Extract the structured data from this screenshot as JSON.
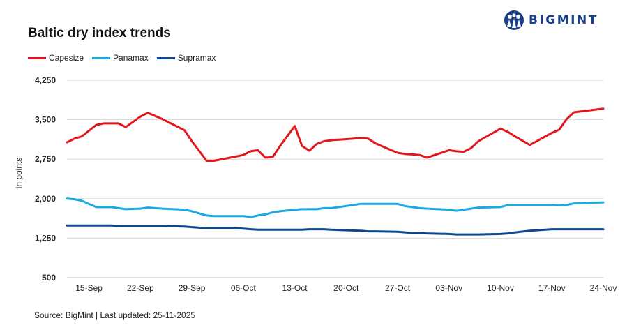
{
  "logo": {
    "text": "BIGMINT",
    "icon": "bigmint-logo-icon",
    "color": "#1b3f8b"
  },
  "source": "Source: BigMint | Last updated: 25-11-2025",
  "chart_data": {
    "type": "line",
    "title": "Baltic dry index trends",
    "ylabel": "in points",
    "xlabel": "",
    "ylim": [
      500,
      4250
    ],
    "yticks": [
      500,
      1250,
      2000,
      2750,
      3500,
      4250
    ],
    "ytick_labels": [
      "500",
      "1,250",
      "2,000",
      "2,750",
      "3,500",
      "4,250"
    ],
    "x_start": "2025-09-12",
    "x_end": "2025-11-24",
    "xtick_labels": [
      "15-Sep",
      "22-Sep",
      "29-Sep",
      "06-Oct",
      "13-Oct",
      "20-Oct",
      "27-Oct",
      "03-Nov",
      "10-Nov",
      "17-Nov",
      "24-Nov"
    ],
    "xtick_dates": [
      "2025-09-15",
      "2025-09-22",
      "2025-09-29",
      "2025-10-06",
      "2025-10-13",
      "2025-10-20",
      "2025-10-27",
      "2025-11-03",
      "2025-11-10",
      "2025-11-17",
      "2025-11-24"
    ],
    "grid": "horizontal",
    "legend_position": "top-left",
    "x": [
      "2025-09-12",
      "2025-09-13",
      "2025-09-14",
      "2025-09-16",
      "2025-09-17",
      "2025-09-18",
      "2025-09-19",
      "2025-09-20",
      "2025-09-22",
      "2025-09-23",
      "2025-09-25",
      "2025-09-28",
      "2025-09-29",
      "2025-10-01",
      "2025-10-02",
      "2025-10-05",
      "2025-10-06",
      "2025-10-07",
      "2025-10-08",
      "2025-10-09",
      "2025-10-10",
      "2025-10-11",
      "2025-10-13",
      "2025-10-14",
      "2025-10-15",
      "2025-10-16",
      "2025-10-17",
      "2025-10-18",
      "2025-10-22",
      "2025-10-23",
      "2025-10-24",
      "2025-10-27",
      "2025-10-28",
      "2025-10-29",
      "2025-10-30",
      "2025-10-31",
      "2025-11-03",
      "2025-11-04",
      "2025-11-05",
      "2025-11-06",
      "2025-11-07",
      "2025-11-10",
      "2025-11-11",
      "2025-11-12",
      "2025-11-14",
      "2025-11-17",
      "2025-11-18",
      "2025-11-19",
      "2025-11-20",
      "2025-11-24"
    ],
    "series": [
      {
        "name": "Capesize",
        "color": "#e2171c",
        "values": [
          3070,
          3140,
          3180,
          3400,
          3430,
          3430,
          3430,
          3360,
          3560,
          3630,
          3510,
          3300,
          3090,
          2720,
          2720,
          2800,
          2830,
          2900,
          2920,
          2780,
          2790,
          3000,
          3380,
          3000,
          2910,
          3040,
          3090,
          3110,
          3150,
          3140,
          3050,
          2870,
          2850,
          2840,
          2830,
          2780,
          2920,
          2900,
          2890,
          2960,
          3090,
          3330,
          3270,
          3180,
          3020,
          3250,
          3310,
          3510,
          3640,
          3710
        ]
      },
      {
        "name": "Panamax",
        "color": "#1ba9e1",
        "values": [
          2000,
          1990,
          1960,
          1840,
          1840,
          1840,
          1820,
          1800,
          1810,
          1830,
          1810,
          1790,
          1760,
          1680,
          1670,
          1670,
          1670,
          1650,
          1680,
          1700,
          1740,
          1760,
          1790,
          1800,
          1800,
          1800,
          1820,
          1820,
          1900,
          1900,
          1900,
          1900,
          1860,
          1840,
          1820,
          1810,
          1790,
          1770,
          1790,
          1810,
          1830,
          1840,
          1880,
          1880,
          1880,
          1880,
          1870,
          1880,
          1910,
          1930
        ]
      },
      {
        "name": "Supramax",
        "color": "#0b4a8f",
        "values": [
          1490,
          1490,
          1490,
          1490,
          1490,
          1490,
          1480,
          1480,
          1480,
          1480,
          1480,
          1470,
          1460,
          1440,
          1440,
          1440,
          1430,
          1420,
          1410,
          1410,
          1410,
          1410,
          1410,
          1410,
          1420,
          1420,
          1420,
          1410,
          1390,
          1380,
          1380,
          1370,
          1360,
          1350,
          1350,
          1340,
          1330,
          1320,
          1320,
          1320,
          1320,
          1330,
          1340,
          1360,
          1390,
          1420,
          1420,
          1420,
          1420,
          1420
        ]
      }
    ]
  }
}
